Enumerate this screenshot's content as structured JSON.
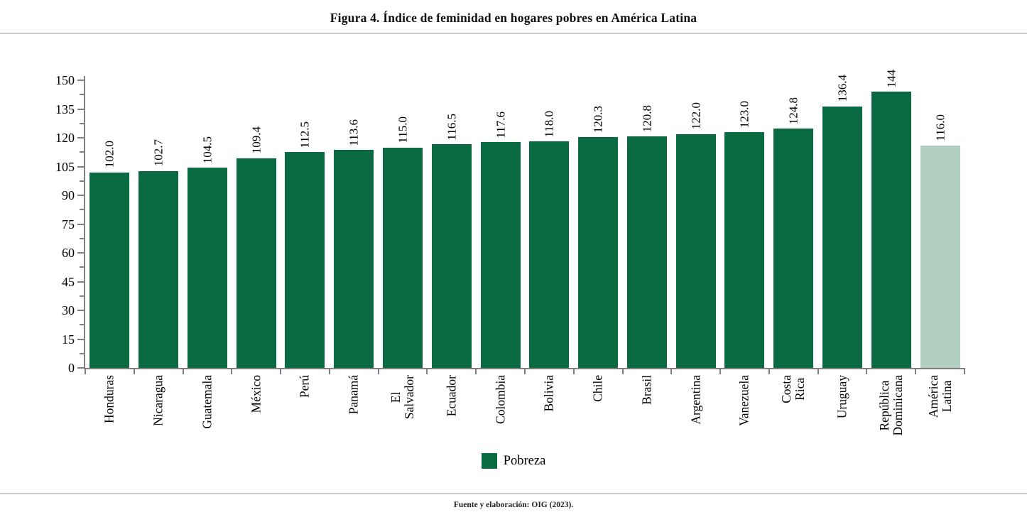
{
  "page": {
    "title": "Figura 4. Índice de feminidad en hogares pobres en América Latina",
    "source_note": "Fuente y elaboración: OIG (2023)."
  },
  "legend": {
    "label": "Pobreza"
  },
  "chart_data": {
    "type": "bar",
    "title": "Figura 4. Índice de feminidad en hogares pobres en América Latina",
    "xlabel": "",
    "ylabel": "",
    "categories": [
      "Honduras",
      "Nicaragua",
      "Guatemala",
      "México",
      "Perú",
      "Panamá",
      "El Salvador",
      "Ecuador",
      "Colombia",
      "Bolivia",
      "Chile",
      "Brasil",
      "Argentina",
      "Vanezuela",
      "Costa Rica",
      "Uruguay",
      "República\nDominicana",
      "América\nLatina"
    ],
    "values": [
      102.0,
      102.7,
      104.5,
      109.4,
      112.5,
      113.6,
      115.0,
      116.5,
      117.6,
      118.0,
      120.3,
      120.8,
      122.0,
      123.0,
      124.8,
      136.4,
      144,
      116.0
    ],
    "value_labels": [
      "102.0",
      "102.7",
      "104.5",
      "109.4",
      "112.5",
      "113.6",
      "115.0",
      "116.5",
      "117.6",
      "118.0",
      "120.3",
      "120.8",
      "122.0",
      "123.0",
      "124.8",
      "136.4",
      "144",
      "116.0"
    ],
    "series_name": "Pobreza",
    "ylim": [
      0,
      150
    ],
    "yticks": [
      0,
      15,
      30,
      45,
      60,
      75,
      90,
      105,
      120,
      135,
      150
    ],
    "yminor_step": 7.5,
    "bar_color": "#0A6B43",
    "highlight_color": "#B2CFC1",
    "highlight_index": 17,
    "axis_color": "#7f7f7f",
    "grid": false,
    "legend_position": "bottom-center"
  }
}
